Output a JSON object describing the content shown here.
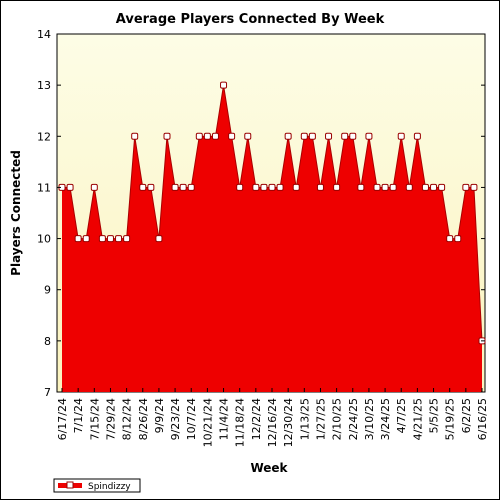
{
  "chart_data": {
    "type": "area",
    "title": "Average Players Connected By Week",
    "xlabel": "Week",
    "ylabel": "Players Connected",
    "ylim": [
      7,
      14
    ],
    "yticks": [
      7,
      8,
      9,
      10,
      11,
      12,
      13,
      14
    ],
    "grid": false,
    "legend_position": "bottom-left",
    "colors": {
      "fill": "#ee0000",
      "line": "#aa0000",
      "marker_fill": "#ffffff",
      "marker_stroke": "#990000",
      "plot_background_top": "#fdfde6",
      "plot_background_bottom": "#fbf3bf"
    },
    "x_tick_labels": [
      "6/17/24",
      "7/1/24",
      "7/15/24",
      "7/29/24",
      "8/12/24",
      "8/26/24",
      "9/9/24",
      "9/23/24",
      "10/7/24",
      "10/21/24",
      "11/4/24",
      "11/18/24",
      "12/2/24",
      "12/16/24",
      "12/30/24",
      "1/13/25",
      "1/27/25",
      "2/10/25",
      "2/24/25",
      "3/10/25",
      "3/24/25",
      "4/7/25",
      "4/21/25",
      "5/5/25",
      "5/19/25",
      "6/2/25",
      "6/16/25"
    ],
    "x": [
      "6/17/24",
      "6/24/24",
      "7/1/24",
      "7/8/24",
      "7/15/24",
      "7/22/24",
      "7/29/24",
      "8/5/24",
      "8/12/24",
      "8/19/24",
      "8/26/24",
      "9/2/24",
      "9/9/24",
      "9/16/24",
      "9/23/24",
      "9/30/24",
      "10/7/24",
      "10/14/24",
      "10/21/24",
      "10/28/24",
      "11/4/24",
      "11/11/24",
      "11/18/24",
      "11/25/24",
      "12/2/24",
      "12/9/24",
      "12/16/24",
      "12/23/24",
      "12/30/24",
      "1/6/25",
      "1/13/25",
      "1/20/25",
      "1/27/25",
      "2/3/25",
      "2/10/25",
      "2/17/25",
      "2/24/25",
      "3/3/25",
      "3/10/25",
      "3/17/25",
      "3/24/25",
      "3/31/25",
      "4/7/25",
      "4/14/25",
      "4/21/25",
      "4/28/25",
      "5/5/25",
      "5/12/25",
      "5/19/25",
      "5/26/25",
      "6/2/25",
      "6/9/25",
      "6/16/25"
    ],
    "series": [
      {
        "name": "Spindizzy",
        "values": [
          11,
          11,
          10,
          10,
          11,
          10,
          10,
          10,
          10,
          12,
          11,
          11,
          10,
          12,
          11,
          11,
          11,
          12,
          12,
          12,
          13,
          12,
          11,
          12,
          11,
          11,
          11,
          11,
          12,
          11,
          12,
          12,
          11,
          12,
          11,
          12,
          12,
          11,
          12,
          11,
          11,
          11,
          12,
          11,
          12,
          11,
          11,
          11,
          10,
          10,
          11,
          11,
          8
        ]
      }
    ]
  }
}
